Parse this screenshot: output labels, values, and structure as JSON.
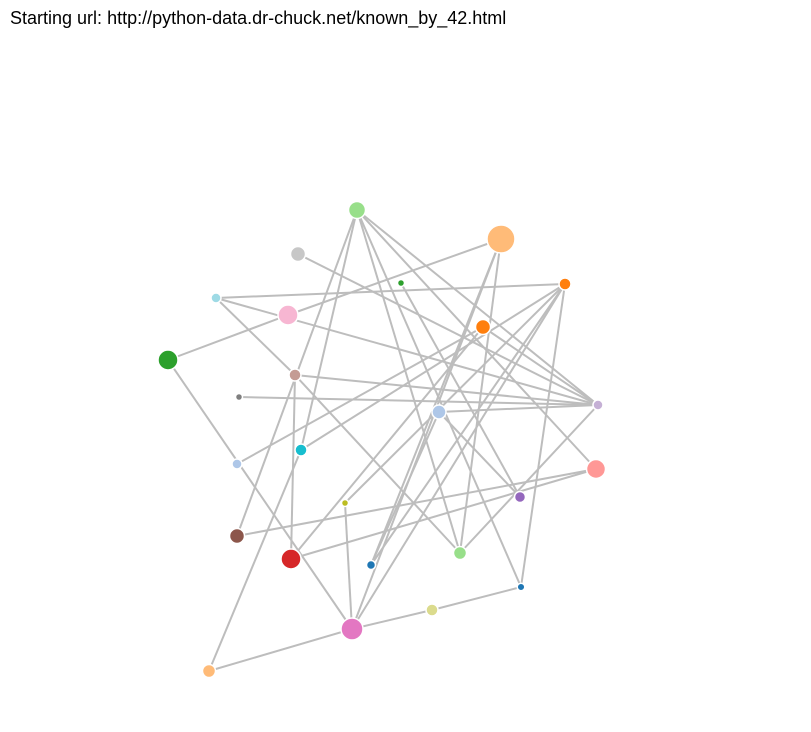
{
  "header": {
    "label": "Starting url:",
    "url": "http://python-data.dr-chuck.net/known_by_42.html"
  },
  "graph": {
    "link_color": "#bdbdbd",
    "node_stroke": "#ffffff",
    "nodes": [
      {
        "id": "n-green-top",
        "color": "#98df8a"
      },
      {
        "id": "n-gray-top",
        "color": "#c7c7c7"
      },
      {
        "id": "n-peach-big",
        "color": "#ffbb78"
      },
      {
        "id": "n-darkgreen-small",
        "color": "#2ca02c"
      },
      {
        "id": "n-orange-right",
        "color": "#ff7f0e"
      },
      {
        "id": "n-skyblue-left",
        "color": "#9edae5"
      },
      {
        "id": "n-pink",
        "color": "#f7b6d2"
      },
      {
        "id": "n-orange-mid",
        "color": "#ff7f0e"
      },
      {
        "id": "n-green-left",
        "color": "#2ca02c"
      },
      {
        "id": "n-rosybrown",
        "color": "#c49c94"
      },
      {
        "id": "n-gray-dot",
        "color": "#7f7f7f"
      },
      {
        "id": "n-lightblue-mid",
        "color": "#aec7e8"
      },
      {
        "id": "n-lavender-right",
        "color": "#c5b0d5"
      },
      {
        "id": "n-lightblue-left",
        "color": "#aec7e8"
      },
      {
        "id": "n-cyan",
        "color": "#17becf"
      },
      {
        "id": "n-salmon",
        "color": "#ff9896"
      },
      {
        "id": "n-purple",
        "color": "#9467bd"
      },
      {
        "id": "n-olive-small",
        "color": "#bcbd22"
      },
      {
        "id": "n-brown",
        "color": "#8c564b"
      },
      {
        "id": "n-red",
        "color": "#d62728"
      },
      {
        "id": "n-lightgreen-low",
        "color": "#98df8a"
      },
      {
        "id": "n-blue-low",
        "color": "#1f77b4"
      },
      {
        "id": "n-blue-right-low",
        "color": "#1f77b4"
      },
      {
        "id": "n-khaki",
        "color": "#dbdb8d"
      },
      {
        "id": "n-magenta-big",
        "color": "#e377c2"
      },
      {
        "id": "n-peach-bottom",
        "color": "#ffbb78"
      }
    ],
    "links": [
      [
        "n-green-top",
        "n-cyan"
      ],
      [
        "n-green-top",
        "n-brown"
      ],
      [
        "n-green-top",
        "n-lavender-right"
      ],
      [
        "n-green-top",
        "n-lightgreen-low"
      ],
      [
        "n-green-top",
        "n-blue-right-low"
      ],
      [
        "n-green-top",
        "n-salmon"
      ],
      [
        "n-gray-top",
        "n-lavender-right"
      ],
      [
        "n-peach-big",
        "n-blue-low"
      ],
      [
        "n-peach-big",
        "n-magenta-big"
      ],
      [
        "n-peach-big",
        "n-pink"
      ],
      [
        "n-peach-big",
        "n-lightgreen-low"
      ],
      [
        "n-darkgreen-small",
        "n-purple"
      ],
      [
        "n-skyblue-left",
        "n-orange-right"
      ],
      [
        "n-skyblue-left",
        "n-lavender-right"
      ],
      [
        "n-skyblue-left",
        "n-rosybrown"
      ],
      [
        "n-green-left",
        "n-pink"
      ],
      [
        "n-green-left",
        "n-magenta-big"
      ],
      [
        "n-rosybrown",
        "n-lightgreen-low"
      ],
      [
        "n-rosybrown",
        "n-lavender-right"
      ],
      [
        "n-rosybrown",
        "n-red"
      ],
      [
        "n-gray-dot",
        "n-lavender-right"
      ],
      [
        "n-orange-right",
        "n-cyan"
      ],
      [
        "n-orange-right",
        "n-olive-small"
      ],
      [
        "n-orange-right",
        "n-blue-low"
      ],
      [
        "n-orange-right",
        "n-magenta-big"
      ],
      [
        "n-orange-right",
        "n-blue-right-low"
      ],
      [
        "n-orange-mid",
        "n-lightblue-left"
      ],
      [
        "n-orange-mid",
        "n-lavender-right"
      ],
      [
        "n-orange-mid",
        "n-red"
      ],
      [
        "n-lightblue-mid",
        "n-purple"
      ],
      [
        "n-lightblue-mid",
        "n-blue-low"
      ],
      [
        "n-lightblue-mid",
        "n-lavender-right"
      ],
      [
        "n-lavender-right",
        "n-lightgreen-low"
      ],
      [
        "n-cyan",
        "n-peach-bottom"
      ],
      [
        "n-salmon",
        "n-brown"
      ],
      [
        "n-red",
        "n-salmon"
      ],
      [
        "n-khaki",
        "n-blue-right-low"
      ],
      [
        "n-magenta-big",
        "n-khaki"
      ],
      [
        "n-magenta-big",
        "n-peach-bottom"
      ],
      [
        "n-magenta-big",
        "n-olive-small"
      ]
    ]
  }
}
